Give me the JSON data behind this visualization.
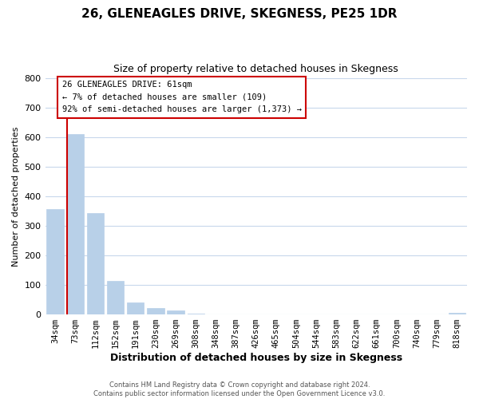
{
  "title": "26, GLENEAGLES DRIVE, SKEGNESS, PE25 1DR",
  "subtitle": "Size of property relative to detached houses in Skegness",
  "xlabel": "Distribution of detached houses by size in Skegness",
  "ylabel": "Number of detached properties",
  "bar_labels": [
    "34sqm",
    "73sqm",
    "112sqm",
    "152sqm",
    "191sqm",
    "230sqm",
    "269sqm",
    "308sqm",
    "348sqm",
    "387sqm",
    "426sqm",
    "465sqm",
    "504sqm",
    "544sqm",
    "583sqm",
    "622sqm",
    "661sqm",
    "700sqm",
    "740sqm",
    "779sqm",
    "818sqm"
  ],
  "bar_values": [
    358,
    611,
    343,
    114,
    40,
    21,
    13,
    4,
    0,
    0,
    0,
    0,
    0,
    0,
    0,
    0,
    0,
    0,
    0,
    0,
    5
  ],
  "bar_color": "#b8d0e8",
  "highlight_color": "#cc0000",
  "ylim": [
    0,
    800
  ],
  "yticks": [
    0,
    100,
    200,
    300,
    400,
    500,
    600,
    700,
    800
  ],
  "annotation_title": "26 GLENEAGLES DRIVE: 61sqm",
  "annotation_line1": "← 7% of detached houses are smaller (109)",
  "annotation_line2": "92% of semi-detached houses are larger (1,373) →",
  "footer_line1": "Contains HM Land Registry data © Crown copyright and database right 2024.",
  "footer_line2": "Contains public sector information licensed under the Open Government Licence v3.0.",
  "grid_color": "#c8d8ec",
  "background_color": "#ffffff",
  "plot_bg_color": "#ffffff",
  "title_fontsize": 11,
  "subtitle_fontsize": 9,
  "xlabel_fontsize": 9,
  "ylabel_fontsize": 8
}
